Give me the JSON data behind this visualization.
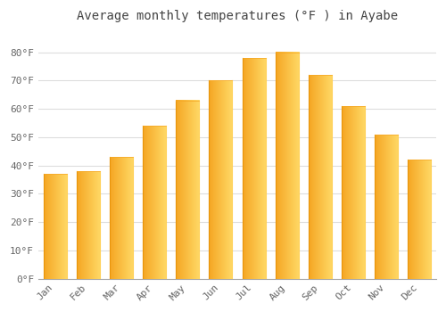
{
  "title": "Average monthly temperatures (°F ) in Ayabe",
  "months": [
    "Jan",
    "Feb",
    "Mar",
    "Apr",
    "May",
    "Jun",
    "Jul",
    "Aug",
    "Sep",
    "Oct",
    "Nov",
    "Dec"
  ],
  "values": [
    37,
    38,
    43,
    54,
    63,
    70,
    78,
    80,
    72,
    61,
    51,
    42
  ],
  "bar_color_left": "#F5A623",
  "bar_color_right": "#FFD966",
  "background_color": "#ffffff",
  "ylim": [
    0,
    88
  ],
  "yticks": [
    0,
    10,
    20,
    30,
    40,
    50,
    60,
    70,
    80
  ],
  "ytick_labels": [
    "0°F",
    "10°F",
    "20°F",
    "30°F",
    "40°F",
    "50°F",
    "60°F",
    "70°F",
    "80°F"
  ],
  "title_fontsize": 10,
  "tick_fontsize": 8,
  "grid_color": "#dddddd",
  "bar_width": 0.7
}
